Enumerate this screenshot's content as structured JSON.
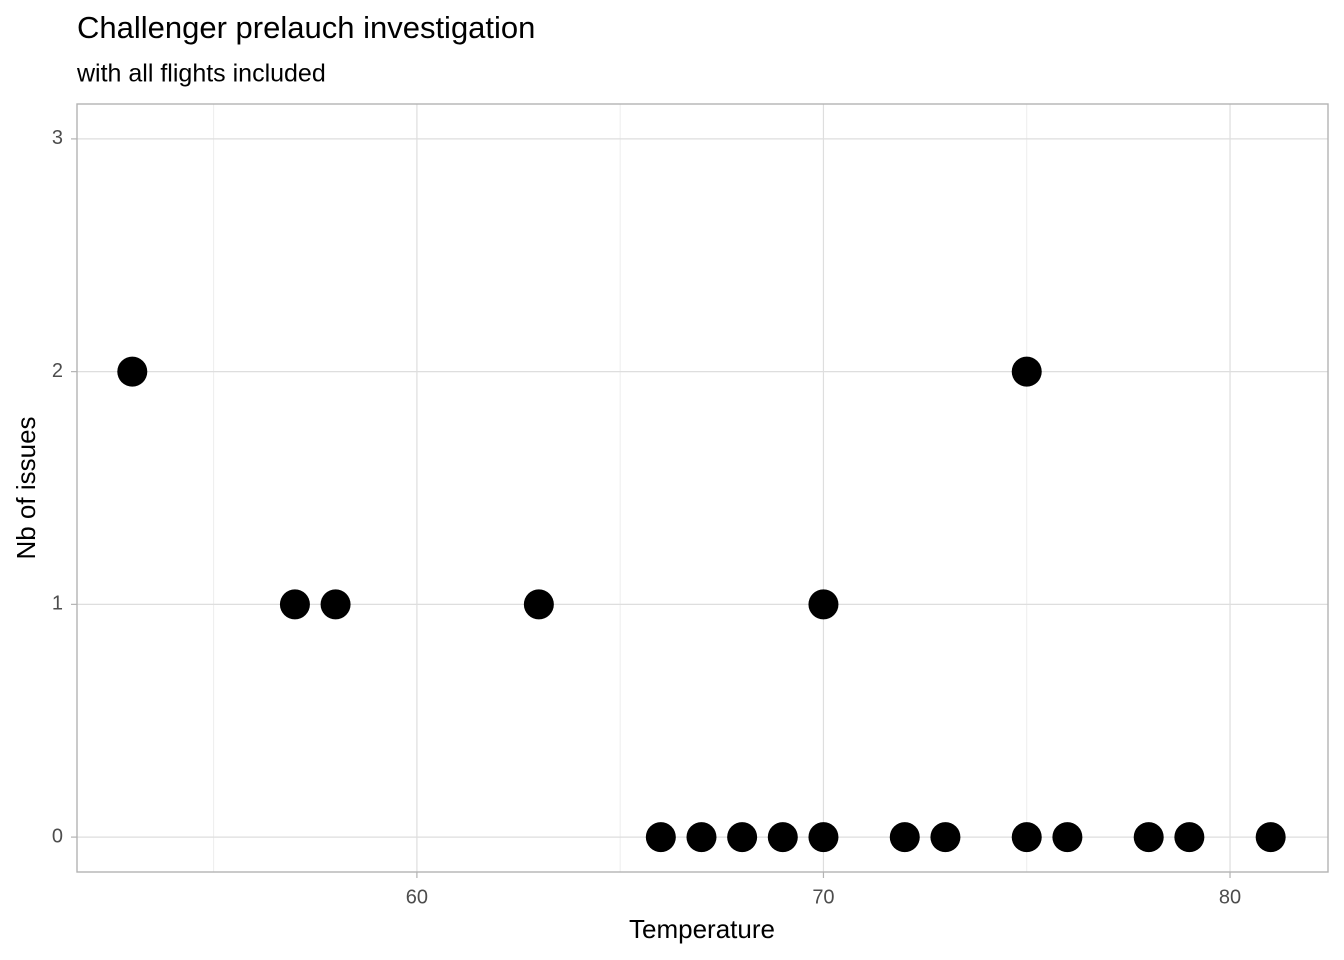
{
  "chart_data": {
    "type": "scatter",
    "title": "Challenger prelauch investigation",
    "subtitle": "with all flights included",
    "x_label": "Temperature",
    "y_label": "Nb of issues",
    "x": [
      53,
      57,
      58,
      63,
      66,
      67,
      68,
      69,
      70,
      70,
      72,
      73,
      75,
      75,
      76,
      78,
      79,
      81
    ],
    "y": [
      2,
      1,
      1,
      1,
      0,
      0,
      0,
      0,
      0,
      1,
      0,
      0,
      0,
      2,
      0,
      0,
      0,
      0
    ],
    "color": "#000000",
    "xlim": [
      51.64,
      82.41
    ],
    "ylim": [
      -0.15,
      3.15
    ],
    "xticks": [
      60,
      70,
      80
    ],
    "yticks": [
      0,
      1,
      2,
      3
    ],
    "grid": true
  }
}
